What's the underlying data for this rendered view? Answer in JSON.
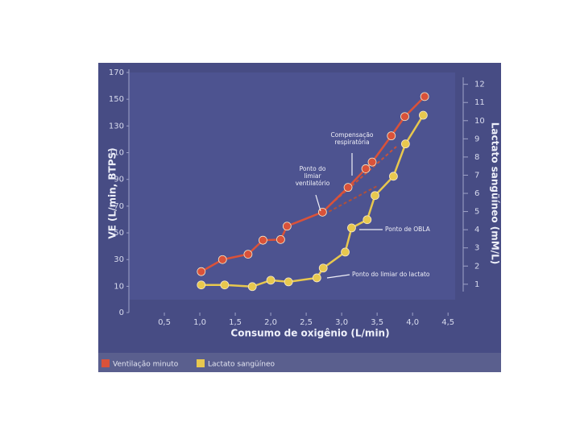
{
  "chart_data": {
    "type": "scatter-line",
    "x_label": "Consumo de oxigênio (L/min)",
    "y_label": "VE (L/min, BTPS)",
    "y2_label": "Lactato sangüíneo (mM/L)",
    "xlim": [
      0,
      4.6
    ],
    "xticks": [
      {
        "value": 0.5,
        "label": "0,5"
      },
      {
        "value": 1.0,
        "label": "1,0"
      },
      {
        "value": 1.5,
        "label": "1,5"
      },
      {
        "value": 2.0,
        "label": "2,0"
      },
      {
        "value": 2.5,
        "label": "2,5"
      },
      {
        "value": 3.0,
        "label": "3,0"
      },
      {
        "value": 3.5,
        "label": "3,5"
      },
      {
        "value": 4.0,
        "label": "4,0"
      },
      {
        "value": 4.5,
        "label": "4,5"
      }
    ],
    "ylim": [
      0,
      170
    ],
    "yticks": [
      0,
      10,
      30,
      50,
      70,
      90,
      110,
      130,
      150,
      170
    ],
    "y2lim": [
      0.15,
      12.65
    ],
    "y2ticks": [
      1,
      2,
      3,
      4,
      5,
      6,
      7,
      8,
      9,
      10,
      11,
      12
    ],
    "series": [
      {
        "name": "Ventilação minuto",
        "color": "#d9523a",
        "x": [
          1.02,
          1.32,
          1.68,
          1.89,
          2.14,
          2.23,
          2.73,
          3.09,
          3.34,
          3.43,
          3.7,
          3.89,
          4.17
        ],
        "values": [
          21,
          30,
          34,
          44.5,
          45,
          55,
          65.5,
          84,
          98,
          103,
          122.6,
          137,
          152
        ]
      },
      {
        "name": "Lactato sangüíneo",
        "color": "#e8c84e",
        "axis": "y2",
        "x": [
          1.02,
          1.35,
          1.74,
          2.0,
          2.25,
          2.65,
          2.74,
          3.05,
          3.14,
          3.36,
          3.47,
          3.73,
          3.9,
          4.15
        ],
        "values": [
          0.96,
          0.96,
          0.87,
          1.22,
          1.13,
          1.35,
          1.89,
          2.77,
          4.1,
          4.55,
          5.88,
          6.94,
          8.72,
          10.3
        ]
      }
    ],
    "annotations": [
      {
        "lines": [
          "Compensação",
          "respiratória"
        ]
      },
      {
        "lines": [
          "Ponto do",
          "limiar",
          "ventilatório"
        ]
      },
      {
        "lines": [
          "Ponto de OBLA"
        ]
      },
      {
        "lines": [
          "Ponto do limiar do lactato"
        ]
      }
    ]
  }
}
